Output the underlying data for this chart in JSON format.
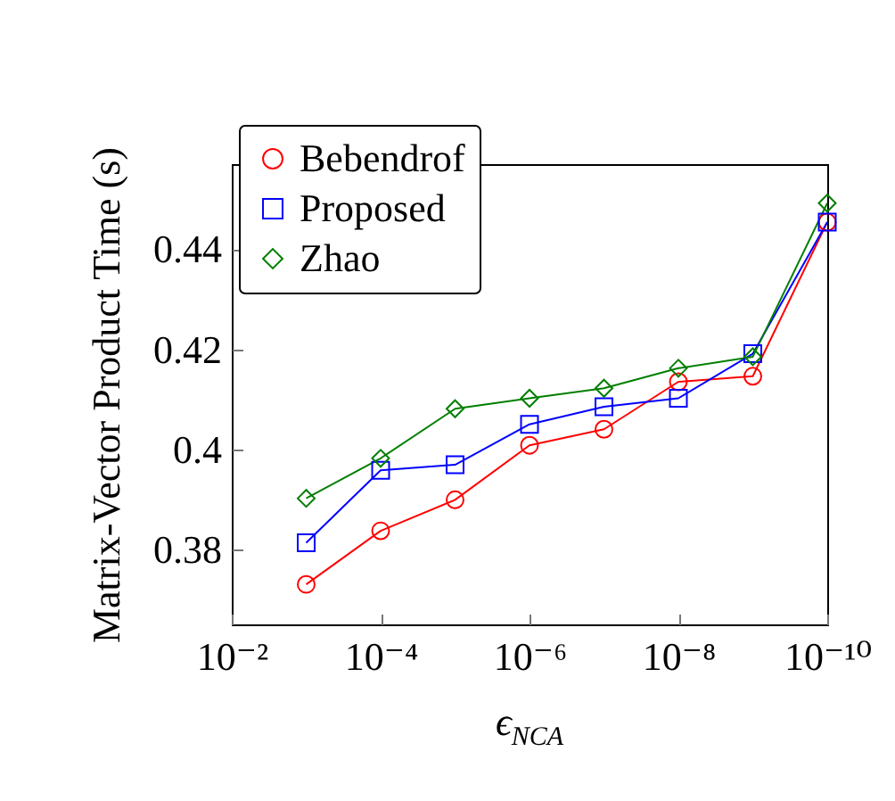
{
  "chart_data": {
    "type": "line",
    "xlabel": "ϵ$_{NCA}$",
    "ylabel": "Matrix-Vector Product Time (s)",
    "x": [
      0.001,
      0.0001,
      1e-05,
      1e-06,
      1e-07,
      1e-08,
      1e-09,
      1e-10
    ],
    "series": [
      {
        "name": "Bebendrof",
        "color": "#ff0000",
        "marker": "circle",
        "values": [
          0.373,
          0.3837,
          0.3899,
          0.4008,
          0.404,
          0.4135,
          0.4146,
          0.4454
        ]
      },
      {
        "name": "Proposed",
        "color": "#0000ff",
        "marker": "square",
        "values": [
          0.3813,
          0.3958,
          0.3969,
          0.405,
          0.4085,
          0.4102,
          0.4191,
          0.4454
        ]
      },
      {
        "name": "Zhao",
        "color": "#007f00",
        "marker": "diamond",
        "values": [
          0.3902,
          0.3982,
          0.4081,
          0.4102,
          0.4122,
          0.4162,
          0.4185,
          0.4492
        ]
      }
    ],
    "log": "x",
    "xlim": [
      0.01,
      1e-10
    ],
    "xticks": [
      {
        "value": 0.01,
        "label": "10⁻²"
      },
      {
        "value": 0.0001,
        "label": "10⁻⁴"
      },
      {
        "value": 1e-06,
        "label": "10⁻⁶"
      },
      {
        "value": 1e-08,
        "label": "10⁻⁸"
      },
      {
        "value": 1e-10,
        "label": "10⁻¹⁰"
      }
    ],
    "ylim": [
      0.365,
      0.457
    ],
    "yticks": [
      0.38,
      0.4,
      0.42,
      0.44
    ],
    "grid": false,
    "legend": "top left",
    "line_style": "solid"
  }
}
